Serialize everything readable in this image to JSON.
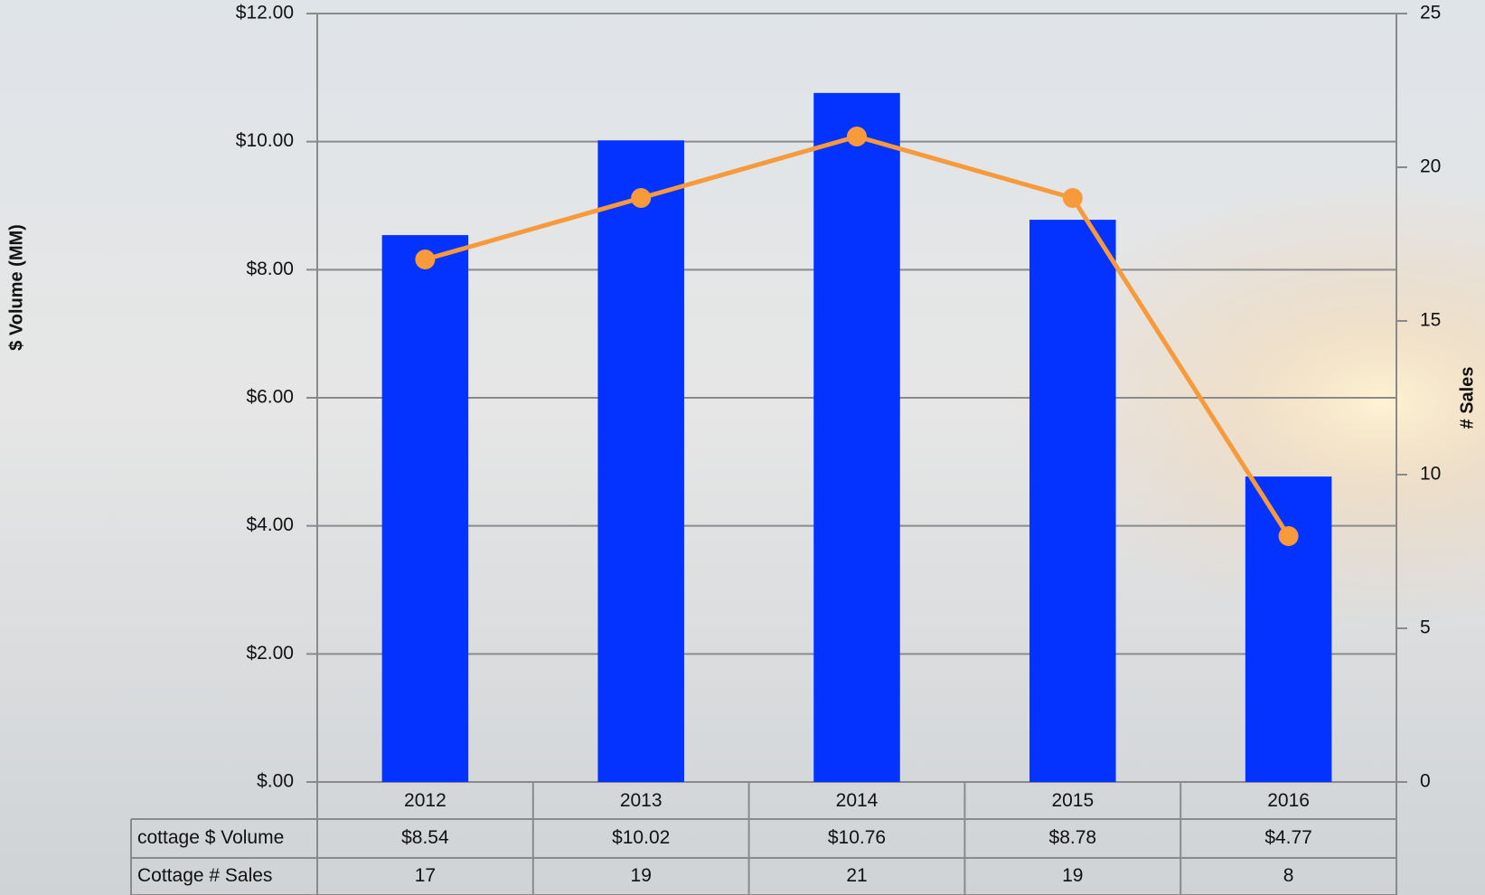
{
  "chart_data": {
    "type": "bar",
    "categories": [
      "2012",
      "2013",
      "2014",
      "2015",
      "2016"
    ],
    "series": [
      {
        "name": "cottage $ Volume",
        "type": "bar",
        "color": "#0433ff",
        "values": [
          8.54,
          10.02,
          10.76,
          8.78,
          4.77
        ],
        "value_labels": [
          "$8.54",
          "$10.02",
          "$10.76",
          "$8.78",
          "$4.77"
        ]
      },
      {
        "name": "Cottage # Sales",
        "type": "line",
        "axis": "y2",
        "color": "#f79a3c",
        "values": [
          17,
          19,
          21,
          19,
          8
        ]
      }
    ],
    "y_label": "$ Volume (MM)",
    "y2_label": "# Sales",
    "ylim": [
      0,
      12
    ],
    "yticks": [
      {
        "value": 0,
        "label": "$.00"
      },
      {
        "value": 2,
        "label": "$2.00"
      },
      {
        "value": 4,
        "label": "$4.00"
      },
      {
        "value": 6,
        "label": "$6.00"
      },
      {
        "value": 8,
        "label": "$8.00"
      },
      {
        "value": 10,
        "label": "$10.00"
      },
      {
        "value": 12,
        "label": "$12.00"
      }
    ],
    "y2lim": [
      0,
      25
    ],
    "y2ticks": [
      0,
      5,
      10,
      15,
      20,
      25
    ],
    "grid": true
  }
}
